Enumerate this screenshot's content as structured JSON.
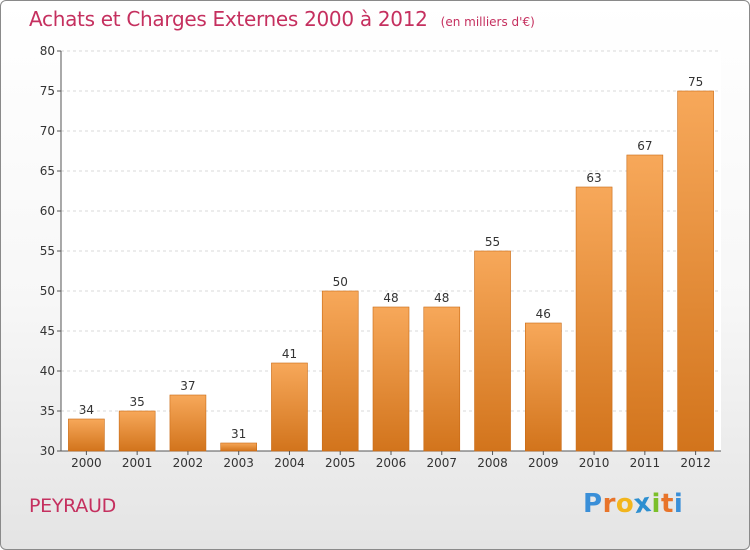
{
  "chart_data": {
    "type": "bar",
    "title": "Achats et Charges Externes 2000 à 2012",
    "unit_note": "(en milliers d'€)",
    "categories": [
      "2000",
      "2001",
      "2002",
      "2003",
      "2004",
      "2005",
      "2006",
      "2007",
      "2008",
      "2009",
      "2010",
      "2011",
      "2012"
    ],
    "values": [
      34,
      35,
      37,
      31,
      41,
      50,
      48,
      48,
      55,
      46,
      63,
      67,
      75
    ],
    "ylim": [
      30,
      80
    ],
    "yticks": [
      30,
      35,
      40,
      45,
      50,
      55,
      60,
      65,
      70,
      75,
      80
    ],
    "grid": true,
    "xlabel": "",
    "ylabel": "",
    "bar_color_top": "#f7a85a",
    "bar_color_bottom": "#d2741c"
  },
  "commune": "PEYRAUD",
  "logo": {
    "letters": [
      "P",
      "r",
      "o",
      "x",
      "i",
      "t",
      "i"
    ],
    "colors": [
      "#3a8fd8",
      "#e8742a",
      "#f2b51d",
      "#2d8fd0",
      "#7bbf2a",
      "#e8742a",
      "#3a8fd8"
    ]
  }
}
